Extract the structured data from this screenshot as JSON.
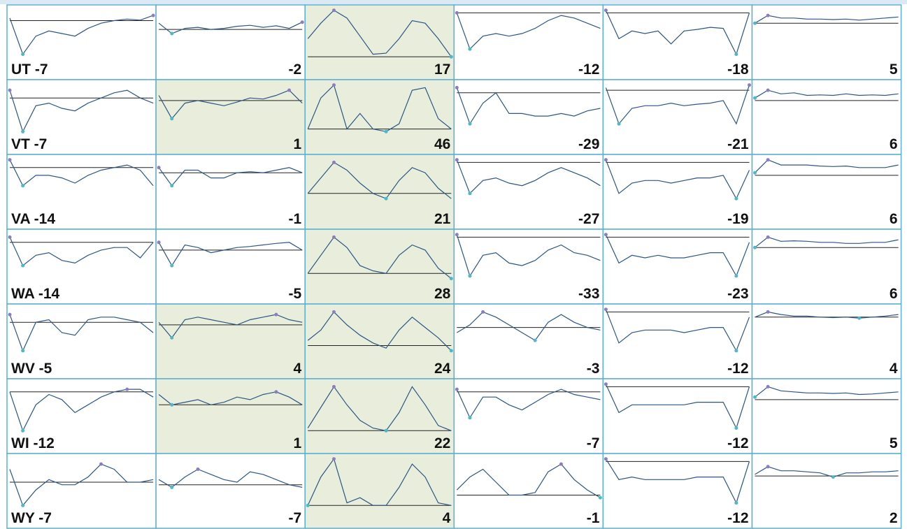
{
  "rows": [
    {
      "label": "UT -7",
      "cells": [
        {
          "highlight": false,
          "line": [
            80,
            10,
            45,
            55,
            50,
            45,
            60,
            70,
            75,
            78,
            76,
            85
          ],
          "baseline": 75
        },
        {
          "value": -2,
          "highlight": false,
          "line": [
            70,
            50,
            60,
            62,
            58,
            60,
            64,
            66,
            62,
            65,
            60,
            72
          ],
          "baseline": 58
        },
        {
          "value": 17,
          "highlight": true,
          "line": [
            40,
            70,
            95,
            80,
            45,
            10,
            12,
            40,
            75,
            70,
            40,
            5
          ],
          "baseline": 5
        },
        {
          "value": -12,
          "highlight": false,
          "line": [
            90,
            20,
            45,
            50,
            45,
            50,
            60,
            75,
            85,
            80,
            70,
            60
          ],
          "baseline": 90
        },
        {
          "value": -18,
          "highlight": false,
          "line": [
            95,
            40,
            55,
            50,
            55,
            30,
            55,
            58,
            62,
            60,
            10,
            90
          ],
          "baseline": 90
        },
        {
          "value": 5,
          "highlight": false,
          "line": [
            70,
            85,
            80,
            80,
            78,
            78,
            77,
            78,
            76,
            78,
            80,
            82
          ],
          "baseline": 70
        }
      ]
    },
    {
      "label": "VT -7",
      "cells": [
        {
          "highlight": false,
          "line": [
            85,
            5,
            55,
            60,
            50,
            45,
            60,
            70,
            80,
            85,
            70,
            60
          ],
          "baseline": 70
        },
        {
          "value": 1,
          "highlight": true,
          "line": [
            75,
            30,
            60,
            65,
            60,
            55,
            62,
            70,
            68,
            75,
            85,
            60
          ],
          "baseline": 65
        },
        {
          "value": 46,
          "highlight": true,
          "line": [
            10,
            70,
            95,
            10,
            40,
            10,
            5,
            20,
            85,
            90,
            30,
            10
          ],
          "baseline": 10
        },
        {
          "value": -29,
          "highlight": false,
          "line": [
            90,
            20,
            60,
            80,
            40,
            40,
            35,
            35,
            40,
            35,
            45,
            50
          ],
          "baseline": 80
        },
        {
          "value": -21,
          "highlight": false,
          "line": [
            90,
            20,
            50,
            55,
            55,
            60,
            55,
            58,
            60,
            65,
            20,
            95
          ],
          "baseline": 85
        },
        {
          "value": 6,
          "highlight": false,
          "line": [
            70,
            85,
            78,
            80,
            75,
            76,
            75,
            78,
            75,
            76,
            75,
            78
          ],
          "baseline": 65
        }
      ]
    },
    {
      "label": "VA -14",
      "cells": [
        {
          "highlight": false,
          "line": [
            95,
            45,
            65,
            65,
            60,
            50,
            65,
            75,
            80,
            85,
            75,
            45
          ],
          "baseline": 80
        },
        {
          "value": -1,
          "highlight": false,
          "line": [
            80,
            45,
            75,
            75,
            60,
            60,
            70,
            72,
            70,
            75,
            80,
            70
          ],
          "baseline": 70
        },
        {
          "value": 21,
          "highlight": true,
          "line": [
            30,
            60,
            90,
            75,
            50,
            30,
            20,
            55,
            80,
            70,
            40,
            20
          ],
          "baseline": 30
        },
        {
          "value": -27,
          "highlight": false,
          "line": [
            95,
            30,
            55,
            60,
            50,
            45,
            55,
            70,
            80,
            70,
            60,
            45
          ],
          "baseline": 90
        },
        {
          "value": -19,
          "highlight": false,
          "line": [
            95,
            30,
            50,
            55,
            55,
            50,
            55,
            60,
            60,
            65,
            20,
            75
          ],
          "baseline": 90
        },
        {
          "value": 6,
          "highlight": false,
          "line": [
            70,
            95,
            85,
            85,
            85,
            83,
            82,
            83,
            80,
            80,
            80,
            85
          ],
          "baseline": 65
        }
      ]
    },
    {
      "label": "WA -14",
      "cells": [
        {
          "highlight": false,
          "line": [
            90,
            35,
            55,
            60,
            45,
            40,
            55,
            65,
            70,
            70,
            50,
            80
          ],
          "baseline": 80
        },
        {
          "value": -5,
          "highlight": false,
          "line": [
            80,
            35,
            75,
            70,
            60,
            65,
            70,
            72,
            75,
            78,
            80,
            65
          ],
          "baseline": 65
        },
        {
          "value": 28,
          "highlight": true,
          "line": [
            20,
            55,
            90,
            70,
            35,
            25,
            20,
            55,
            75,
            65,
            30,
            10
          ],
          "baseline": 20
        },
        {
          "value": -33,
          "highlight": false,
          "line": [
            95,
            15,
            55,
            60,
            40,
            35,
            45,
            65,
            75,
            60,
            55,
            45
          ],
          "baseline": 90
        },
        {
          "value": -23,
          "highlight": false,
          "line": [
            95,
            40,
            55,
            50,
            55,
            50,
            50,
            55,
            60,
            60,
            15,
            80
          ],
          "baseline": 90
        },
        {
          "value": 6,
          "highlight": false,
          "line": [
            70,
            90,
            82,
            83,
            82,
            80,
            80,
            78,
            78,
            80,
            80,
            85
          ],
          "baseline": 70
        }
      ]
    },
    {
      "label": "WV -5",
      "cells": [
        {
          "highlight": false,
          "line": [
            85,
            15,
            70,
            75,
            50,
            45,
            75,
            80,
            80,
            75,
            70,
            50
          ],
          "baseline": 70
        },
        {
          "value": 4,
          "highlight": true,
          "line": [
            70,
            40,
            75,
            80,
            75,
            70,
            65,
            75,
            80,
            85,
            75,
            70
          ],
          "baseline": 65
        },
        {
          "value": 24,
          "highlight": true,
          "line": [
            35,
            55,
            90,
            65,
            45,
            30,
            20,
            55,
            80,
            60,
            40,
            15
          ],
          "baseline": 25
        },
        {
          "value": -3,
          "highlight": false,
          "line": [
            50,
            65,
            90,
            80,
            65,
            50,
            35,
            70,
            85,
            70,
            60,
            55
          ],
          "baseline": 60
        },
        {
          "value": -12,
          "highlight": false,
          "line": [
            95,
            30,
            50,
            55,
            55,
            55,
            50,
            55,
            60,
            60,
            15,
            80
          ],
          "baseline": 90
        },
        {
          "value": 4,
          "highlight": false,
          "line": [
            80,
            90,
            85,
            82,
            82,
            80,
            79,
            80,
            78,
            80,
            82,
            85
          ],
          "baseline": 80
        }
      ]
    },
    {
      "label": "WI -12",
      "cells": [
        {
          "highlight": false,
          "line": [
            80,
            5,
            55,
            75,
            65,
            40,
            55,
            70,
            80,
            85,
            85,
            70
          ],
          "baseline": 80
        },
        {
          "value": 1,
          "highlight": true,
          "line": [
            75,
            55,
            60,
            65,
            55,
            60,
            70,
            65,
            75,
            80,
            70,
            55
          ],
          "baseline": 55
        },
        {
          "value": 22,
          "highlight": true,
          "line": [
            10,
            50,
            90,
            55,
            25,
            10,
            5,
            40,
            90,
            55,
            15,
            5
          ],
          "baseline": 5
        },
        {
          "value": -7,
          "highlight": false,
          "line": [
            85,
            30,
            70,
            70,
            55,
            45,
            60,
            75,
            85,
            75,
            70,
            65
          ],
          "baseline": 80
        },
        {
          "value": -12,
          "highlight": false,
          "line": [
            95,
            40,
            55,
            55,
            55,
            55,
            55,
            60,
            60,
            60,
            10,
            90
          ],
          "baseline": 90
        },
        {
          "value": 5,
          "highlight": false,
          "line": [
            70,
            90,
            82,
            80,
            78,
            78,
            77,
            78,
            75,
            76,
            78,
            80
          ],
          "baseline": 65
        }
      ]
    },
    {
      "label": "WY -7",
      "cells": [
        {
          "highlight": false,
          "line": [
            75,
            5,
            35,
            55,
            45,
            45,
            60,
            85,
            75,
            50,
            50,
            55
          ],
          "baseline": 50
        },
        {
          "value": -7,
          "highlight": false,
          "line": [
            55,
            40,
            60,
            75,
            65,
            55,
            50,
            70,
            65,
            55,
            45,
            40
          ],
          "baseline": 45
        },
        {
          "value": 4,
          "highlight": true,
          "line": [
            5,
            60,
            95,
            10,
            20,
            5,
            5,
            40,
            85,
            60,
            10,
            5
          ],
          "baseline": 5
        },
        {
          "value": -1,
          "highlight": false,
          "line": [
            35,
            60,
            75,
            50,
            25,
            25,
            30,
            70,
            85,
            55,
            35,
            20
          ],
          "baseline": 25
        },
        {
          "value": -12,
          "highlight": false,
          "line": [
            95,
            55,
            60,
            55,
            55,
            55,
            55,
            60,
            60,
            60,
            10,
            90
          ],
          "baseline": 90
        },
        {
          "value": 2,
          "highlight": false,
          "line": [
            65,
            80,
            72,
            72,
            70,
            68,
            60,
            68,
            68,
            70,
            70,
            72
          ],
          "baseline": 62
        }
      ]
    }
  ]
}
